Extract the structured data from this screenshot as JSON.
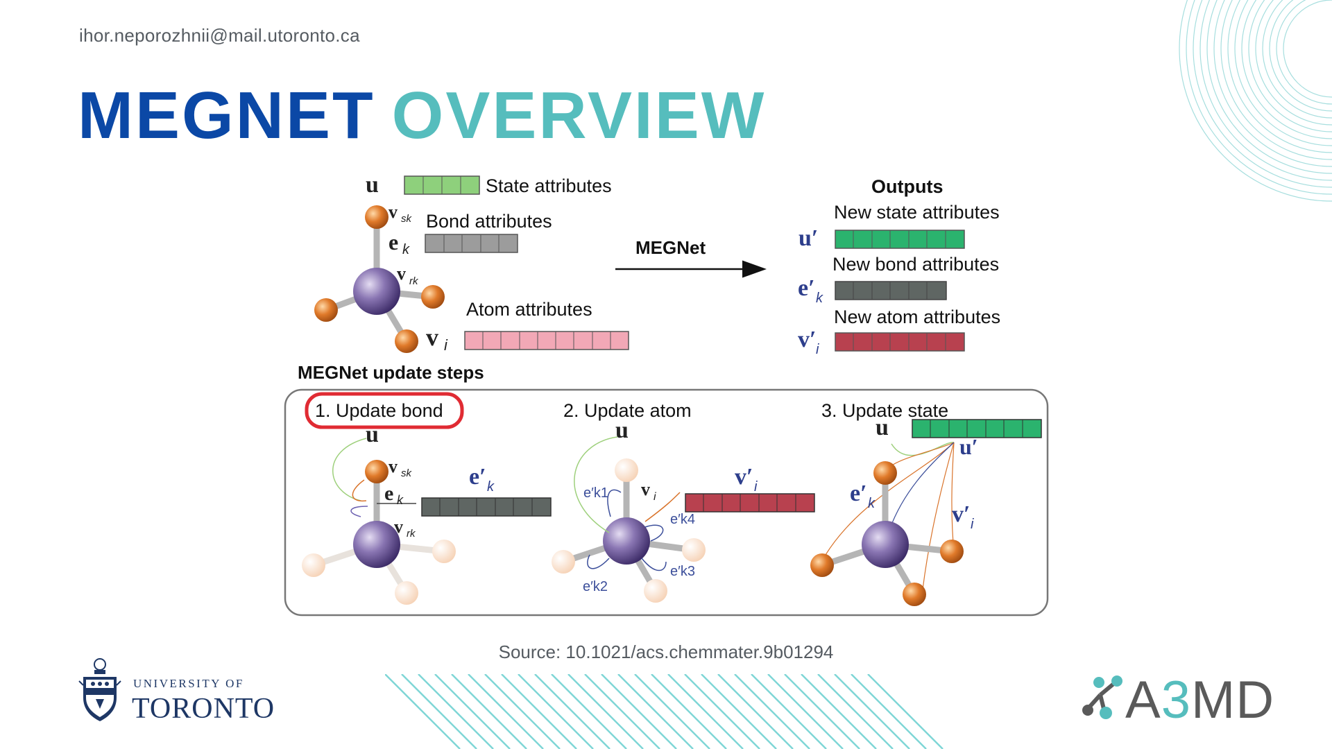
{
  "header": {
    "email": "ihor.neporozhnii@mail.utoronto.ca",
    "title_part1": "MEGNET",
    "title_part2": "OVERVIEW"
  },
  "diagram": {
    "labels": {
      "state_attributes": "State attributes",
      "bond_attributes": "Bond attributes",
      "atom_attributes": "Atom attributes",
      "megnet": "MEGNet",
      "outputs": "Outputs",
      "new_state_attributes": "New state attributes",
      "new_bond_attributes": "New bond attributes",
      "new_atom_attributes": "New atom attributes",
      "update_steps": "MEGNet update steps",
      "step1": "1. Update bond",
      "step2": "2. Update atom",
      "step3": "3. Update state"
    },
    "symbols": {
      "u": "u",
      "e_k": "e",
      "v_i": "v",
      "v_sk": "v",
      "v_rk": "v",
      "u_prime": "u′",
      "e_k_prime": "e′",
      "v_i_prime": "v′"
    },
    "colors": {
      "state": "#8ed07c",
      "bond": "#9c9c9c",
      "atom": "#f2a8b6",
      "new_state": "#2bb36e",
      "new_bond": "#5f6663",
      "new_atom": "#b8414f",
      "highlight": "#e02b33",
      "central_atom": "#6d5a93",
      "neighbor_atom": "#d9732a"
    }
  },
  "footer": {
    "source": "Source: 10.1021/acs.chemmater.9b01294",
    "uoft_line1": "UNIVERSITY OF",
    "uoft_line2": "TORONTO",
    "a3md_a": "A",
    "a3md_3": "3",
    "a3md_md": "MD"
  }
}
